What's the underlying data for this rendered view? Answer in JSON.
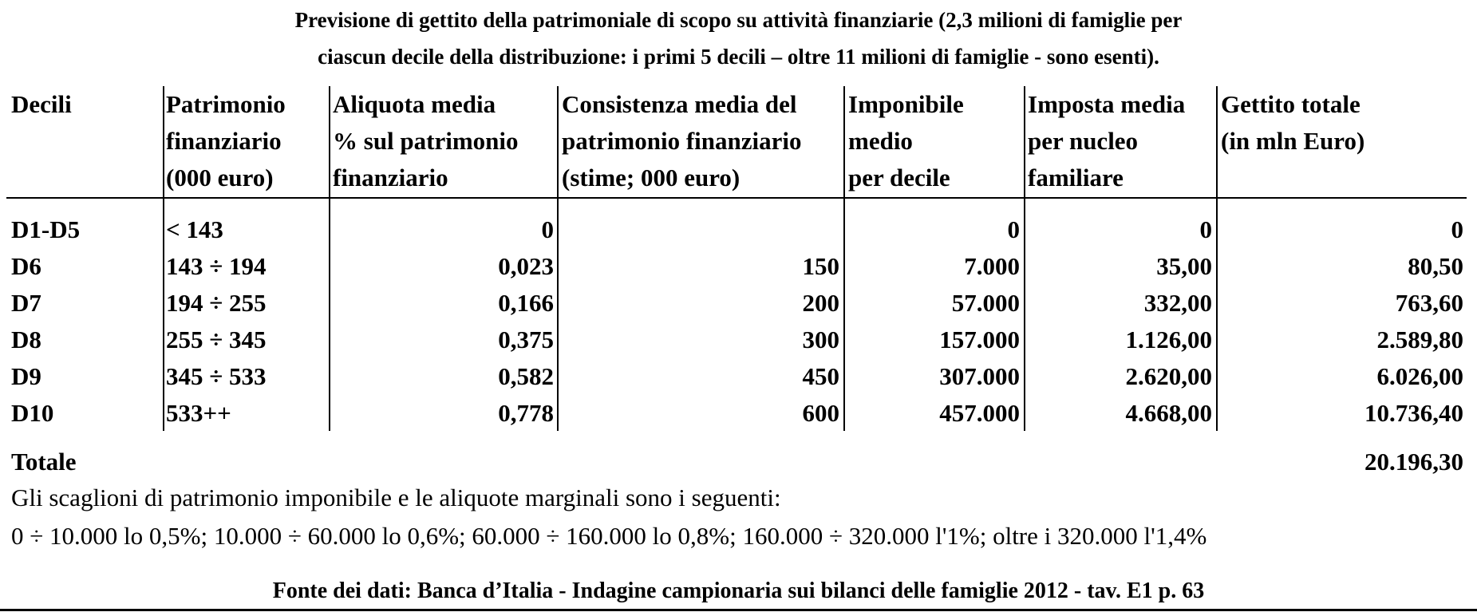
{
  "title": {
    "line1": "Previsione di gettito della patrimoniale di scopo su attività finanziarie (2,3 milioni di famiglie per",
    "line2": "ciascun decile della distribuzione: i primi 5 decili – oltre 11 milioni di famiglie - sono esenti)."
  },
  "headers": [
    [
      "Decili"
    ],
    [
      "Patrimonio",
      "finanziario",
      "(000 euro)"
    ],
    [
      "Aliquota media",
      "% sul patrimonio",
      "finanziario"
    ],
    [
      "Consistenza media del",
      "patrimonio finanziario",
      "(stime; 000 euro)"
    ],
    [
      "Imponibile",
      "medio",
      "per decile"
    ],
    [
      "Imposta media",
      "per nucleo",
      "familiare"
    ],
    [
      "Gettito totale",
      "(in mln Euro)"
    ]
  ],
  "rows": [
    [
      "D1-D5",
      "< 143",
      "0",
      "",
      "0",
      "0",
      "0"
    ],
    [
      "D6",
      "143 ÷ 194",
      "0,023",
      "150",
      "7.000",
      "35,00",
      "80,50"
    ],
    [
      "D7",
      "194 ÷ 255",
      "0,166",
      "200",
      "57.000",
      "332,00",
      "763,60"
    ],
    [
      "D8",
      "255 ÷ 345",
      "0,375",
      "300",
      "157.000",
      "1.126,00",
      "2.589,80"
    ],
    [
      "D9",
      "345 ÷ 533",
      "0,582",
      "450",
      "307.000",
      "2.620,00",
      "6.026,00"
    ],
    [
      "D10",
      "533++",
      "0,778",
      "600",
      "457.000",
      "4.668,00",
      "10.736,40"
    ]
  ],
  "total": {
    "label": "Totale",
    "value": "20.196,30"
  },
  "notes": [
    "Gli scaglioni di patrimonio imponibile e le aliquote marginali sono i seguenti:",
    "0 ÷ 10.000 lo 0,5%; 10.000 ÷ 60.000 lo 0,6%; 60.000 ÷ 160.000 lo 0,8%; 160.000 ÷ 320.000 l'1%; oltre i 320.000 l'1,4%"
  ],
  "source": "Fonte dei dati: Banca d’Italia -  Indagine campionaria sui bilanci delle famiglie 2012  -  tav. E1  p. 63"
}
